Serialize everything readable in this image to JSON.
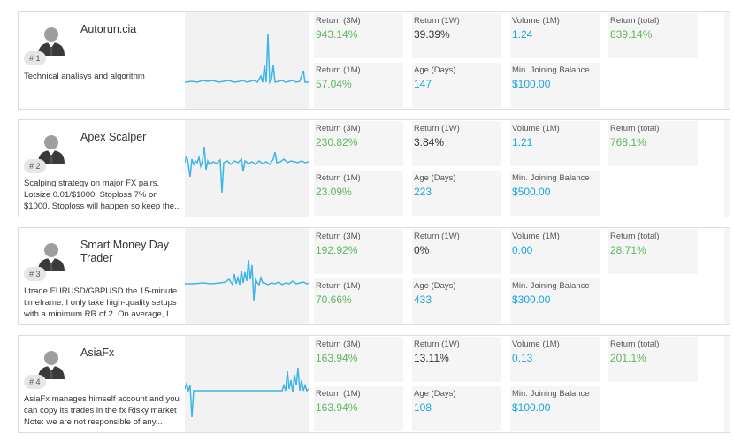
{
  "colors": {
    "green": "#5cb85c",
    "blue": "#1aa7dc",
    "chart_line": "#3db5e6"
  },
  "traders": [
    {
      "rank": "# 1",
      "name": "Autorun.cia",
      "description": "Technical analisys and algorithm",
      "stats": {
        "return_3m": {
          "label": "Return (3M)",
          "value": "943.14%"
        },
        "return_1w": {
          "label": "Return (1W)",
          "value": "39.39%"
        },
        "volume_1m": {
          "label": "Volume (1M)",
          "value": "1.24"
        },
        "return_total": {
          "label": "Return (total)",
          "value": "839.14%"
        },
        "return_1m": {
          "label": "Return (1M)",
          "value": "57.04%"
        },
        "age_days": {
          "label": "Age (Days)",
          "value": "147"
        },
        "min_balance": {
          "label": "Min. Joining Balance",
          "value": "$100.00"
        }
      }
    },
    {
      "rank": "# 2",
      "name": "Apex Scalper",
      "description": "Scalping strategy on major FX pairs. Lotsize 0.01/$1000. Stoploss 7% on $1000. Stoploss will happen so keep the...",
      "stats": {
        "return_3m": {
          "label": "Return (3M)",
          "value": "230.82%"
        },
        "return_1w": {
          "label": "Return (1W)",
          "value": "3.84%"
        },
        "volume_1m": {
          "label": "Volume (1M)",
          "value": "1.21"
        },
        "return_total": {
          "label": "Return (total)",
          "value": "768.1%"
        },
        "return_1m": {
          "label": "Return (1M)",
          "value": "23.09%"
        },
        "age_days": {
          "label": "Age (Days)",
          "value": "223"
        },
        "min_balance": {
          "label": "Min. Joining Balance",
          "value": "$500.00"
        }
      }
    },
    {
      "rank": "# 3",
      "name": "Smart Money Day Trader",
      "description": "I trade EURUSD/GBPUSD the 15-minute timeframe. I only take high-quality setups with a minimum RR of 2. On average, I...",
      "stats": {
        "return_3m": {
          "label": "Return (3M)",
          "value": "192.92%"
        },
        "return_1w": {
          "label": "Return (1W)",
          "value": "0%"
        },
        "volume_1m": {
          "label": "Volume (1M)",
          "value": "0.00"
        },
        "return_total": {
          "label": "Return (total)",
          "value": "28.71%"
        },
        "return_1m": {
          "label": "Return (1M)",
          "value": "70.66%"
        },
        "age_days": {
          "label": "Age (Days)",
          "value": "433"
        },
        "min_balance": {
          "label": "Min. Joining Balance",
          "value": "$300.00"
        }
      }
    },
    {
      "rank": "# 4",
      "name": "AsiaFx",
      "description": "AsiaFx manages himself account and you can copy its trades in the fx Risky market Note: we are not responsible of any...",
      "stats": {
        "return_3m": {
          "label": "Return (3M)",
          "value": "163.94%"
        },
        "return_1w": {
          "label": "Return (1W)",
          "value": "13.11%"
        },
        "volume_1m": {
          "label": "Volume (1M)",
          "value": "0.13"
        },
        "return_total": {
          "label": "Return (total)",
          "value": "201.1%"
        },
        "return_1m": {
          "label": "Return (1M)",
          "value": "163.94%"
        },
        "age_days": {
          "label": "Age (Days)",
          "value": "108"
        },
        "min_balance": {
          "label": "Min. Joining Balance",
          "value": "$100.00"
        }
      }
    }
  ]
}
